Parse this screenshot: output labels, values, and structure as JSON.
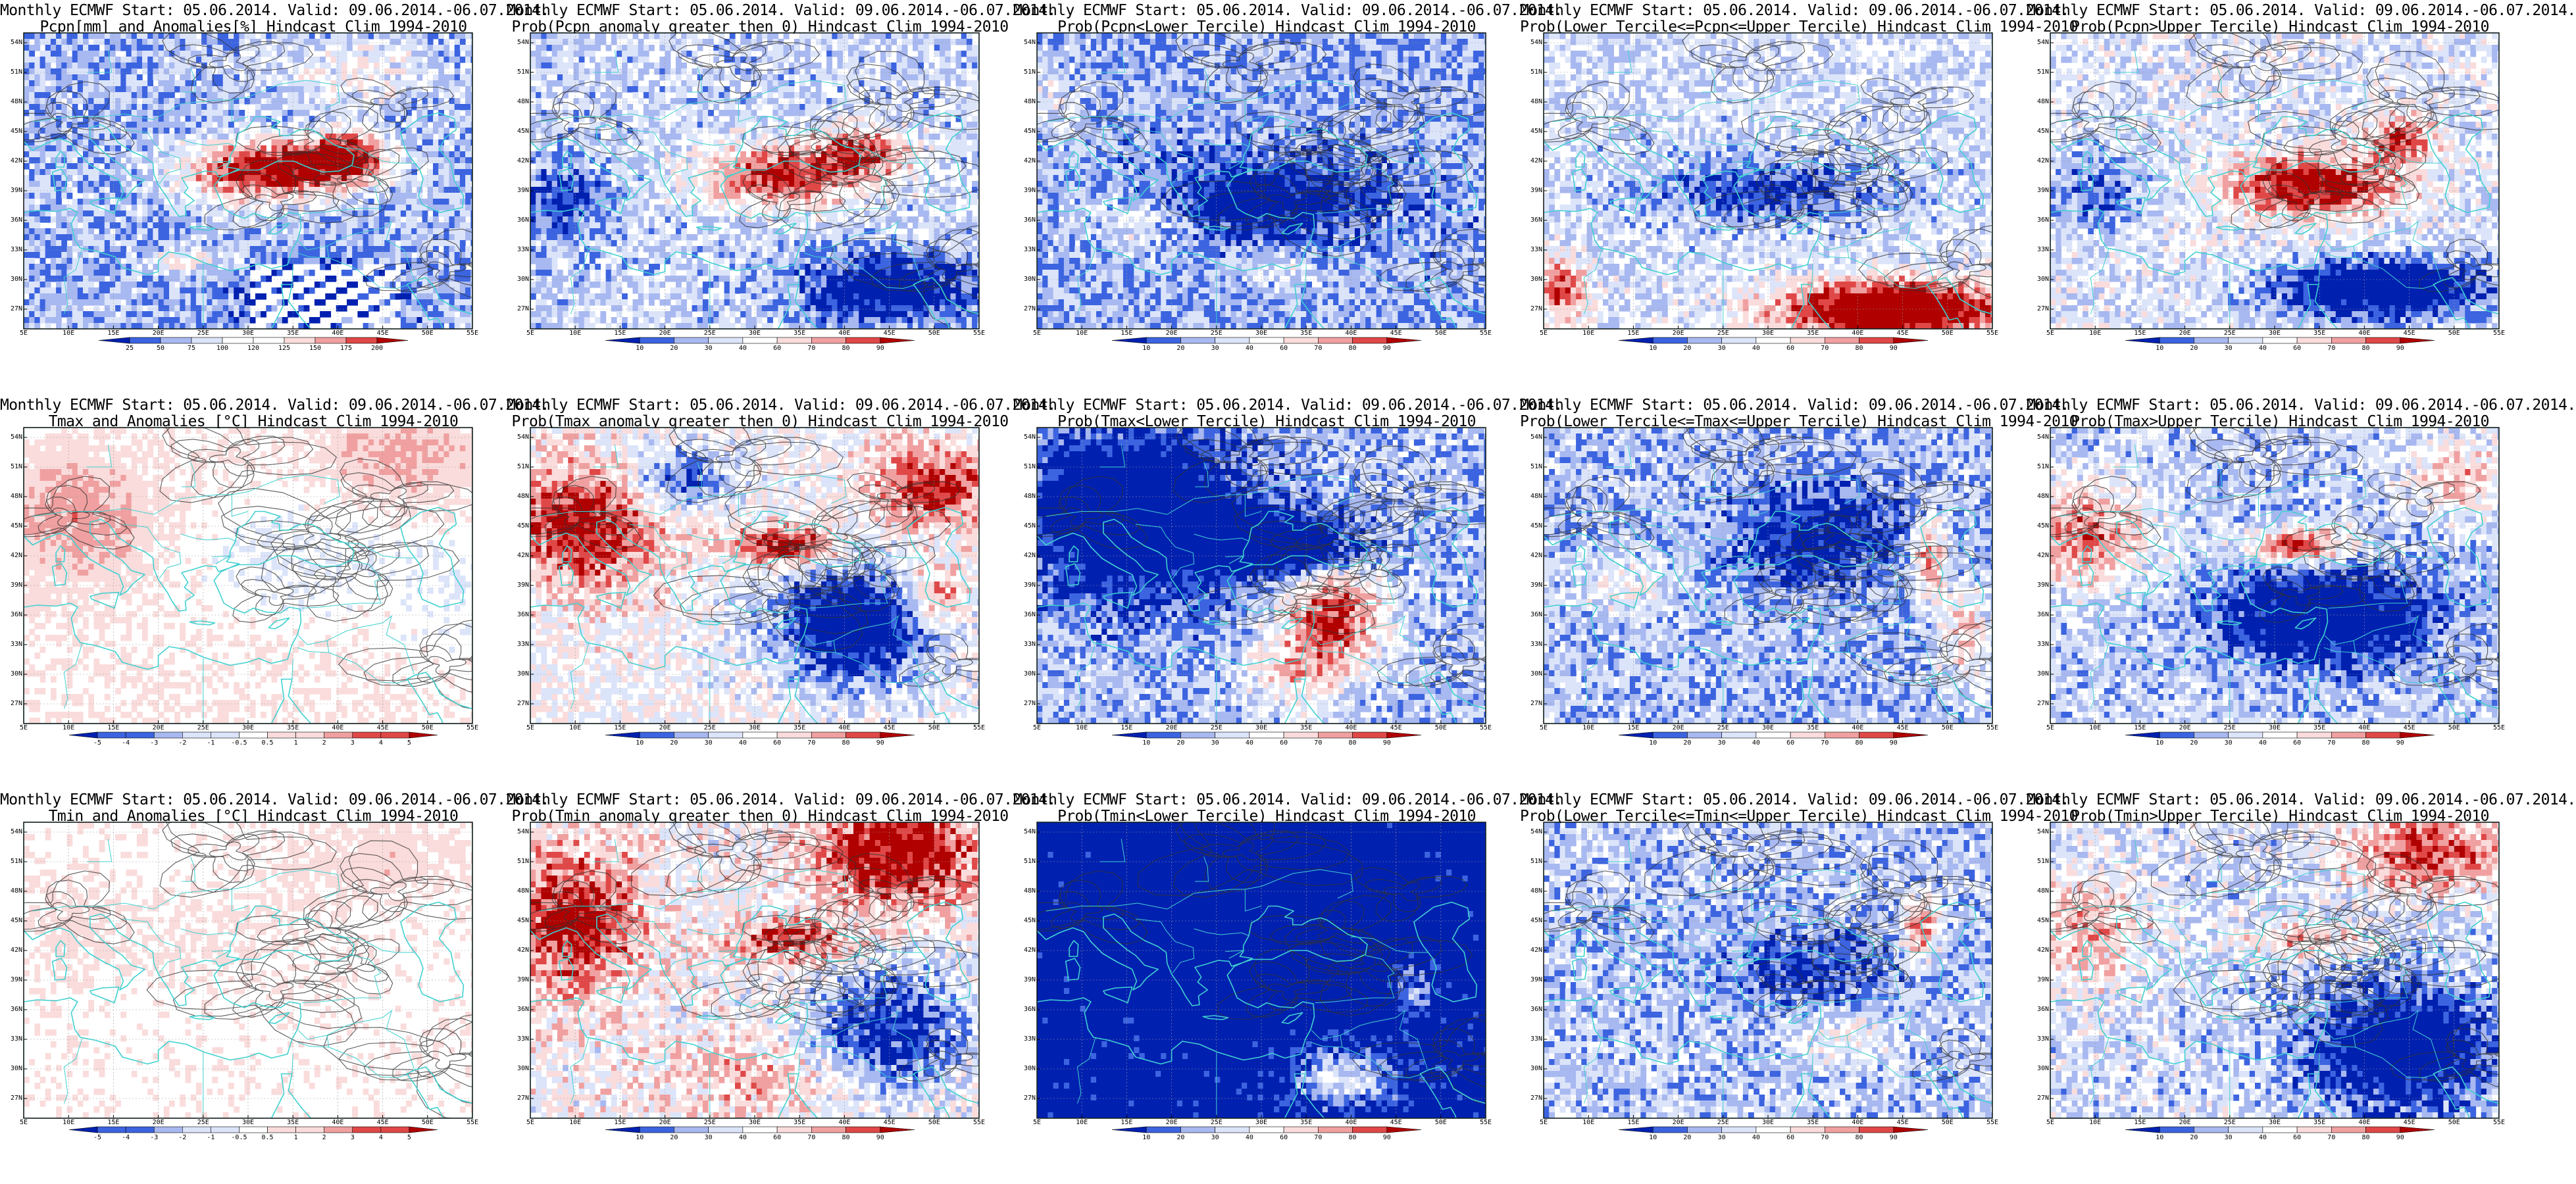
{
  "figure": {
    "map_extent": {
      "lon_min": 5,
      "lon_max": 55,
      "lat_min": 25,
      "lat_max": 55
    },
    "lat_ticks": [
      "54N",
      "51N",
      "48N",
      "45N",
      "42N",
      "39N",
      "36N",
      "33N",
      "30N",
      "27N"
    ],
    "lon_ticks": [
      "5E",
      "10E",
      "15E",
      "20E",
      "25E",
      "30E",
      "35E",
      "40E",
      "45E",
      "50E",
      "55E"
    ],
    "colors": {
      "coastline": "#40d0d0",
      "contour": "#333333",
      "dark_blue": "#0020b0",
      "mid_blue": "#3c64e0",
      "light_blue": "#a8b8f0",
      "pale_blue": "#dce4fa",
      "pale_red": "#fadcdc",
      "light_red": "#f0a0a0",
      "mid_red": "#e04848",
      "dark_red": "#b00000"
    }
  },
  "panels": [
    {
      "id": "pcpn-anom",
      "line1": "Monthly ECMWF Start: 05.06.2014. Valid: 09.06.2014.-06.07.2014.",
      "line2": "Pcpn[mm] and Anomalies[%] Hindcast Clim 1994-2010",
      "colorbar": [
        "25",
        "50",
        "75",
        "100",
        "120",
        "125",
        "150",
        "175",
        "200"
      ]
    },
    {
      "id": "pcpn-prob-gt0",
      "line1": "Monthly ECMWF Start: 05.06.2014. Valid: 09.06.2014.-06.07.2014.",
      "line2": "Prob(Pcpn anomaly greater then 0) Hindcast Clim 1994-2010",
      "colorbar": [
        "10",
        "20",
        "30",
        "40",
        "60",
        "70",
        "80",
        "90"
      ]
    },
    {
      "id": "pcpn-prob-lower",
      "line1": "Monthly ECMWF Start: 05.06.2014. Valid: 09.06.2014.-06.07.2014.",
      "line2": "Prob(Pcpn<Lower Tercile) Hindcast Clim 1994-2010",
      "colorbar": [
        "10",
        "20",
        "30",
        "40",
        "60",
        "70",
        "80",
        "90"
      ]
    },
    {
      "id": "pcpn-prob-middle",
      "line1": "Monthly ECMWF Start: 05.06.2014. Valid: 09.06.2014.-06.07.2014.",
      "line2": "Prob(Lower Tercile<=Pcpn<=Upper Tercile) Hindcast Clim 1994-2010",
      "colorbar": [
        "10",
        "20",
        "30",
        "40",
        "60",
        "70",
        "80",
        "90"
      ]
    },
    {
      "id": "pcpn-prob-upper",
      "line1": "Monthly ECMWF Start: 05.06.2014. Valid: 09.06.2014.-06.07.2014.",
      "line2": "Prob(Pcpn>Upper Tercile) Hindcast Clim 1994-2010",
      "colorbar": [
        "10",
        "20",
        "30",
        "40",
        "60",
        "70",
        "80",
        "90"
      ]
    },
    {
      "id": "tmax-anom",
      "line1": "Monthly ECMWF Start: 05.06.2014. Valid: 09.06.2014.-06.07.2014.",
      "line2": "Tmax and Anomalies [°C] Hindcast Clim 1994-2010",
      "colorbar": [
        "-5",
        "-4",
        "-3",
        "-2",
        "-1",
        "-0.5",
        "0.5",
        "1",
        "2",
        "3",
        "4",
        "5"
      ]
    },
    {
      "id": "tmax-prob-gt0",
      "line1": "Monthly ECMWF Start: 05.06.2014. Valid: 09.06.2014.-06.07.2014.",
      "line2": "Prob(Tmax anomaly greater then 0) Hindcast Clim 1994-2010",
      "colorbar": [
        "10",
        "20",
        "30",
        "40",
        "60",
        "70",
        "80",
        "90"
      ]
    },
    {
      "id": "tmax-prob-lower",
      "line1": "Monthly ECMWF Start: 05.06.2014. Valid: 09.06.2014.-06.07.2014.",
      "line2": "Prob(Tmax<Lower Tercile) Hindcast Clim 1994-2010",
      "colorbar": [
        "10",
        "20",
        "30",
        "40",
        "60",
        "70",
        "80",
        "90"
      ]
    },
    {
      "id": "tmax-prob-middle",
      "line1": "Monthly ECMWF Start: 05.06.2014. Valid: 09.06.2014.-06.07.2014.",
      "line2": "Prob(Lower Tercile<=Tmax<=Upper Tercile) Hindcast Clim 1994-2010",
      "colorbar": [
        "10",
        "20",
        "30",
        "40",
        "60",
        "70",
        "80",
        "90"
      ]
    },
    {
      "id": "tmax-prob-upper",
      "line1": "Monthly ECMWF Start: 05.06.2014. Valid: 09.06.2014.-06.07.2014.",
      "line2": "Prob(Tmax>Upper Tercile) Hindcast Clim 1994-2010",
      "colorbar": [
        "10",
        "20",
        "30",
        "40",
        "60",
        "70",
        "80",
        "90"
      ]
    },
    {
      "id": "tmin-anom",
      "line1": "Monthly ECMWF Start: 05.06.2014. Valid: 09.06.2014.-06.07.2014.",
      "line2": "Tmin and Anomalies [°C] Hindcast Clim 1994-2010",
      "colorbar": [
        "-5",
        "-4",
        "-3",
        "-2",
        "-1",
        "-0.5",
        "0.5",
        "1",
        "2",
        "3",
        "4",
        "5"
      ]
    },
    {
      "id": "tmin-prob-gt0",
      "line1": "Monthly ECMWF Start: 05.06.2014. Valid: 09.06.2014.-06.07.2014.",
      "line2": "Prob(Tmin anomaly greater then 0) Hindcast Clim 1994-2010",
      "colorbar": [
        "10",
        "20",
        "30",
        "40",
        "60",
        "70",
        "80",
        "90"
      ]
    },
    {
      "id": "tmin-prob-lower",
      "line1": "Monthly ECMWF Start: 05.06.2014. Valid: 09.06.2014.-06.07.2014.",
      "line2": "Prob(Tmin<Lower Tercile) Hindcast Clim 1994-2010",
      "colorbar": [
        "10",
        "20",
        "30",
        "40",
        "60",
        "70",
        "80",
        "90"
      ]
    },
    {
      "id": "tmin-prob-middle",
      "line1": "Monthly ECMWF Start: 05.06.2014. Valid: 09.06.2014.-06.07.2014.",
      "line2": "Prob(Lower Tercile<=Tmin<=Upper Tercile) Hindcast Clim 1994-2010",
      "colorbar": [
        "10",
        "20",
        "30",
        "40",
        "60",
        "70",
        "80",
        "90"
      ]
    },
    {
      "id": "tmin-prob-upper",
      "line1": "Monthly ECMWF Start: 05.06.2014. Valid: 09.06.2014.-06.07.2014.",
      "line2": "Prob(Tmin>Upper Tercile) Hindcast Clim 1994-2010",
      "colorbar": [
        "10",
        "20",
        "30",
        "40",
        "60",
        "70",
        "80",
        "90"
      ]
    }
  ],
  "chart_data": {
    "type": "heatmap",
    "layout": "3 rows x 5 columns of map panels",
    "region": {
      "lon_range": [
        5,
        55
      ],
      "lat_range": [
        25,
        55
      ]
    },
    "rows": [
      "Pcpn",
      "Tmax",
      "Tmin"
    ],
    "columns": [
      "anomaly",
      "prob > 0",
      "prob < lower tercile",
      "prob middle tercile",
      "prob > upper tercile"
    ]
  }
}
